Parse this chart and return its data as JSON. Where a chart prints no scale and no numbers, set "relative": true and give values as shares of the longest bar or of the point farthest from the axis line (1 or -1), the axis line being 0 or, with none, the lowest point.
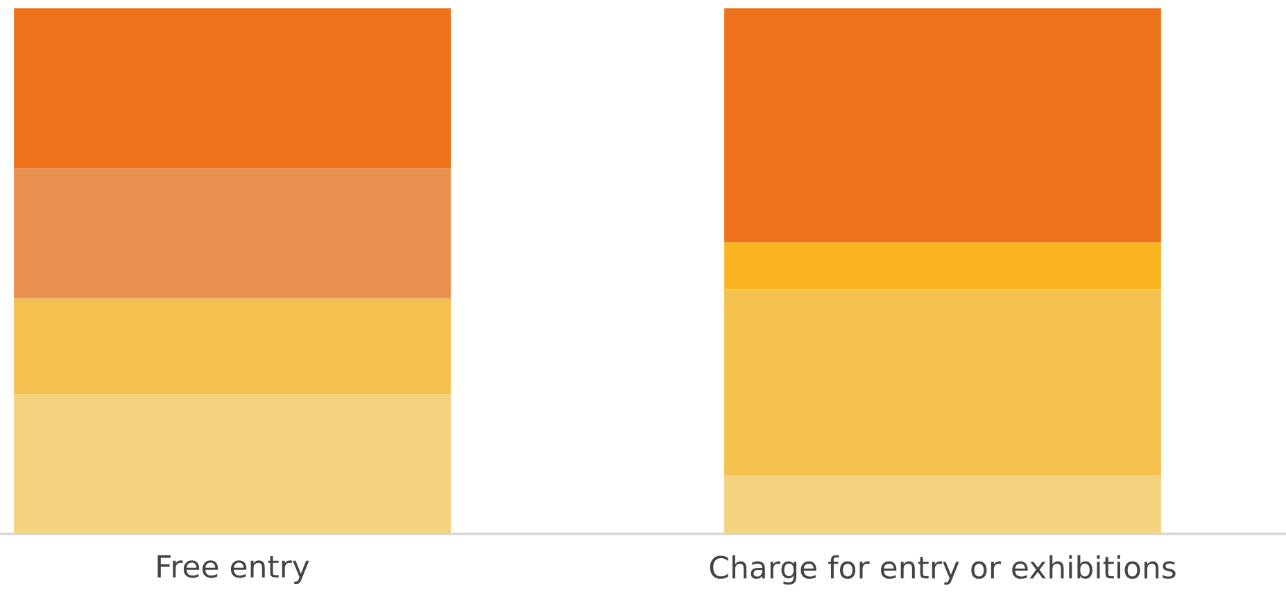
{
  "chart_data": {
    "type": "bar",
    "stacked": true,
    "relative": true,
    "categories": [
      "Free entry",
      "Charge for entry or exhibitions"
    ],
    "series": [
      {
        "colors": [
          "#f4d27f",
          "#f4d27f"
        ],
        "values": [
          0.266,
          0.111
        ]
      },
      {
        "colors": [
          "#f4c14e",
          "#f4c14e"
        ],
        "values": [
          0.182,
          0.354
        ]
      },
      {
        "colors": [
          "#e89050",
          "#fbb521"
        ],
        "values": [
          0.248,
          0.09
        ]
      },
      {
        "colors": [
          "#ee7219",
          "#ee7219"
        ],
        "values": [
          0.304,
          0.445
        ]
      }
    ]
  }
}
